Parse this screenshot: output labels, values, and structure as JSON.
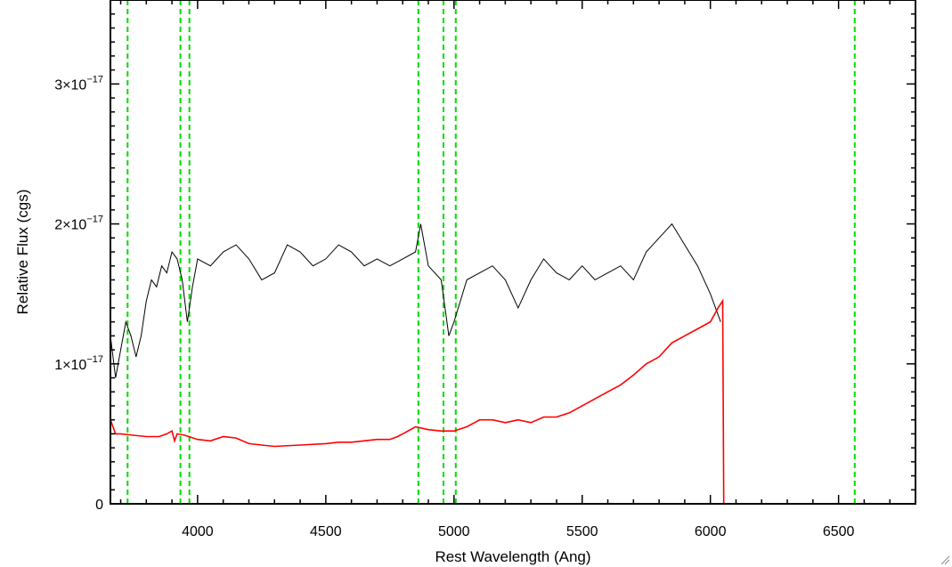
{
  "chart_data": {
    "type": "line",
    "title": "",
    "xlabel": "Rest Wavelength (Ang)",
    "ylabel": "Relative Flux (cgs)",
    "xlim": [
      3660,
      6800
    ],
    "ylim": [
      0,
      3.6e-17
    ],
    "x_ticks": [
      {
        "value": 4000,
        "label": "4000"
      },
      {
        "value": 4500,
        "label": "4500"
      },
      {
        "value": 5000,
        "label": "5000"
      },
      {
        "value": 5500,
        "label": "5500"
      },
      {
        "value": 6000,
        "label": "6000"
      },
      {
        "value": 6500,
        "label": "6500"
      }
    ],
    "y_ticks": [
      {
        "value": 0,
        "mantissa": "0",
        "exponent": ""
      },
      {
        "value": 1e-17,
        "mantissa": "1×10",
        "exponent": "−17"
      },
      {
        "value": 2e-17,
        "mantissa": "2×10",
        "exponent": "−17"
      },
      {
        "value": 3e-17,
        "mantissa": "3×10",
        "exponent": "−17"
      }
    ],
    "grid": false,
    "series": [
      {
        "color": "#000000",
        "x": [
          3660,
          3680,
          3700,
          3720,
          3740,
          3760,
          3780,
          3800,
          3820,
          3840,
          3860,
          3880,
          3900,
          3920,
          3940,
          3960,
          3980,
          4000,
          4050,
          4100,
          4150,
          4200,
          4250,
          4300,
          4350,
          4400,
          4450,
          4500,
          4550,
          4600,
          4650,
          4700,
          4750,
          4800,
          4850,
          4870,
          4900,
          4950,
          4980,
          5000,
          5050,
          5100,
          5150,
          5200,
          5250,
          5300,
          5350,
          5400,
          5450,
          5500,
          5550,
          5600,
          5650,
          5700,
          5750,
          5800,
          5850,
          5900,
          5950,
          6000,
          6040
        ],
        "y": [
          1.2e-17,
          9e-18,
          1.1e-17,
          1.3e-17,
          1.2e-17,
          1.05e-17,
          1.2e-17,
          1.45e-17,
          1.6e-17,
          1.55e-17,
          1.7e-17,
          1.65e-17,
          1.8e-17,
          1.75e-17,
          1.6e-17,
          1.3e-17,
          1.55e-17,
          1.75e-17,
          1.7e-17,
          1.8e-17,
          1.85e-17,
          1.75e-17,
          1.6e-17,
          1.65e-17,
          1.85e-17,
          1.8e-17,
          1.7e-17,
          1.75e-17,
          1.85e-17,
          1.8e-17,
          1.7e-17,
          1.75e-17,
          1.7e-17,
          1.75e-17,
          1.8e-17,
          2e-17,
          1.7e-17,
          1.6e-17,
          1.2e-17,
          1.3e-17,
          1.6e-17,
          1.65e-17,
          1.7e-17,
          1.6e-17,
          1.4e-17,
          1.6e-17,
          1.75e-17,
          1.65e-17,
          1.6e-17,
          1.7e-17,
          1.6e-17,
          1.65e-17,
          1.7e-17,
          1.6e-17,
          1.8e-17,
          1.9e-17,
          2e-17,
          1.85e-17,
          1.7e-17,
          1.5e-17,
          1.3e-17
        ]
      },
      {
        "color": "#ff0000",
        "x": [
          3660,
          3680,
          3700,
          3750,
          3800,
          3850,
          3880,
          3900,
          3910,
          3920,
          3950,
          4000,
          4050,
          4100,
          4150,
          4200,
          4250,
          4300,
          4400,
          4500,
          4550,
          4600,
          4700,
          4750,
          4780,
          4800,
          4850,
          4900,
          4950,
          5000,
          5050,
          5100,
          5150,
          5200,
          5250,
          5300,
          5350,
          5400,
          5450,
          5500,
          5550,
          5600,
          5650,
          5700,
          5750,
          5800,
          5850,
          5900,
          5950,
          6000,
          6030,
          6048,
          6052,
          6800
        ],
        "y": [
          6e-18,
          5e-18,
          5e-18,
          4.9e-18,
          4.8e-18,
          4.8e-18,
          5e-18,
          5.2e-18,
          4.5e-18,
          5e-18,
          4.9e-18,
          4.6e-18,
          4.5e-18,
          4.8e-18,
          4.7e-18,
          4.3e-18,
          4.2e-18,
          4.1e-18,
          4.2e-18,
          4.3e-18,
          4.4e-18,
          4.4e-18,
          4.6e-18,
          4.6e-18,
          4.8e-18,
          5e-18,
          5.5e-18,
          5.3e-18,
          5.2e-18,
          5.2e-18,
          5.5e-18,
          6e-18,
          6e-18,
          5.8e-18,
          6e-18,
          5.8e-18,
          6.2e-18,
          6.2e-18,
          6.5e-18,
          7e-18,
          7.5e-18,
          8e-18,
          8.5e-18,
          9.2e-18,
          1e-17,
          1.05e-17,
          1.15e-17,
          1.2e-17,
          1.25e-17,
          1.3e-17,
          1.4e-17,
          1.45e-17,
          0,
          0
        ]
      }
    ],
    "reference_lines": {
      "color": "#00dd00",
      "style": "dashed",
      "x": [
        3727,
        3933,
        3968,
        4861,
        4959,
        5007,
        6563
      ]
    }
  }
}
